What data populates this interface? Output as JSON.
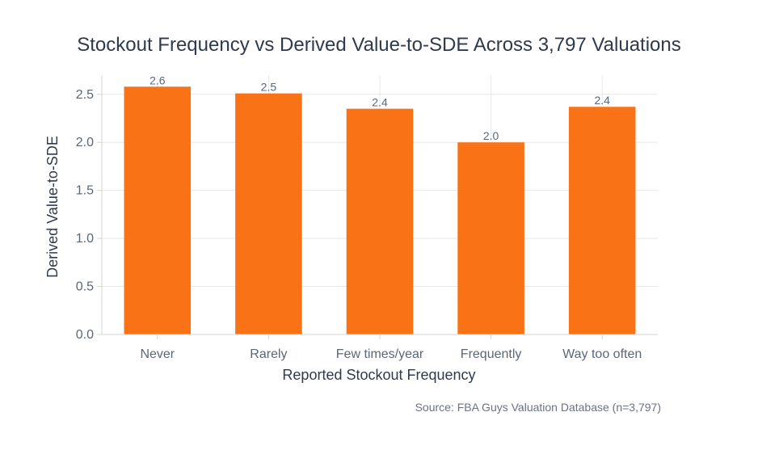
{
  "chart_data": {
    "type": "bar",
    "title": "Stockout Frequency vs Derived Value-to-SDE Across 3,797 Valuations",
    "xlabel": "Reported Stockout Frequency",
    "ylabel": "Derived Value-to-SDE",
    "categories": [
      "Never",
      "Rarely",
      "Few times/year",
      "Frequently",
      "Way too often"
    ],
    "values": [
      2.58,
      2.51,
      2.35,
      2.0,
      2.37
    ],
    "data_labels": [
      "2.6",
      "2.5",
      "2.4",
      "2.0",
      "2.4"
    ],
    "ylim": [
      0,
      2.7
    ],
    "yticks": [
      0,
      0.5,
      1.0,
      1.5,
      2.0,
      2.5
    ],
    "ytick_labels": [
      "0.0",
      "0.5",
      "1.0",
      "1.5",
      "2.0",
      "2.5"
    ],
    "grid": true,
    "bar_color": "#f97316",
    "source": "Source: FBA Guys Valuation Database (n=3,797)"
  }
}
